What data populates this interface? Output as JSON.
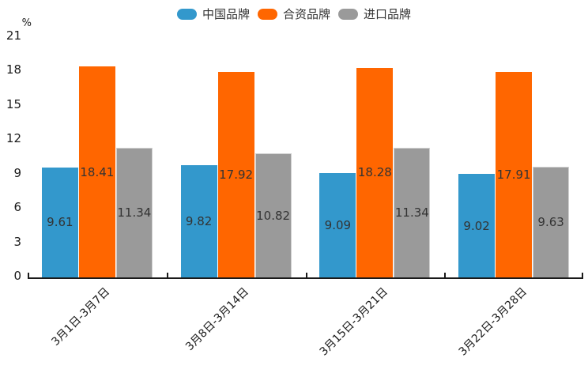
{
  "legend": {
    "items": [
      {
        "label": "中国品牌",
        "color": "#3398CC"
      },
      {
        "label": "合资品牌",
        "color": "#FF6600"
      },
      {
        "label": "进口品牌",
        "color": "#9A9A9A"
      }
    ]
  },
  "chart_data": {
    "type": "bar",
    "title": "",
    "unit_label": "%",
    "categories": [
      "3月1日-3月7日",
      "3月8日-3月14日",
      "3月15日-3月21日",
      "3月22日-3月28日"
    ],
    "series": [
      {
        "name": "中国品牌",
        "color": "#3398CC",
        "values": [
          9.61,
          9.82,
          9.09,
          9.02
        ]
      },
      {
        "name": "合资品牌",
        "color": "#FF6600",
        "values": [
          18.41,
          17.92,
          18.28,
          17.91
        ]
      },
      {
        "name": "进口品牌",
        "color": "#9A9A9A",
        "border_color": "#D0D0D0",
        "values": [
          11.34,
          10.82,
          11.34,
          9.63
        ]
      }
    ],
    "ylim": [
      0,
      21
    ],
    "yticks": [
      0,
      3,
      6,
      9,
      12,
      15,
      18,
      21
    ],
    "grid": false,
    "legend_position": "top",
    "value_labels": true,
    "xtick_rotation": 45
  }
}
